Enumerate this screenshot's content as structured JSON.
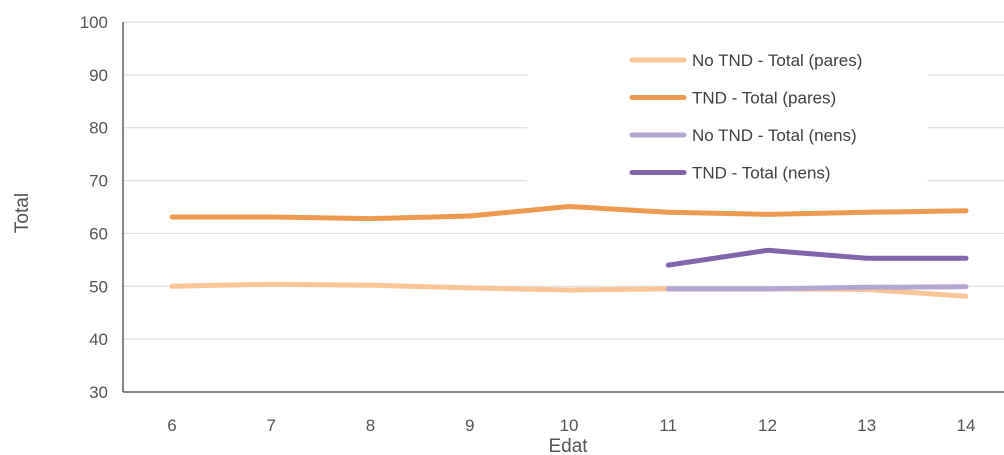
{
  "chart_data": {
    "type": "line",
    "title": "",
    "xlabel": "Edat",
    "ylabel": "Total",
    "x": [
      6,
      7,
      8,
      9,
      10,
      11,
      12,
      13,
      14
    ],
    "ylim": [
      30,
      100
    ],
    "yticks": [
      30,
      40,
      50,
      60,
      70,
      80,
      90,
      100
    ],
    "grid": true,
    "legend_position": "top-right",
    "series": [
      {
        "name": "No TND - Total (pares)",
        "color": "#f9c597",
        "values": [
          50,
          50.4,
          50.2,
          49.7,
          49.3,
          49.5,
          49.5,
          49.4,
          48.1
        ]
      },
      {
        "name": "TND - Total (pares)",
        "color": "#ed9a4e",
        "values": [
          63.1,
          63.1,
          62.8,
          63.3,
          65.1,
          64,
          63.6,
          64,
          64.3
        ]
      },
      {
        "name": "No TND - Total (nens)",
        "color": "#b4a6d3",
        "values": [
          null,
          null,
          null,
          null,
          null,
          49.5,
          49.5,
          49.8,
          49.9
        ]
      },
      {
        "name": "TND - Total (nens)",
        "color": "#8164ab",
        "values": [
          null,
          null,
          null,
          null,
          null,
          54,
          56.8,
          55.3,
          55.3
        ]
      }
    ]
  }
}
